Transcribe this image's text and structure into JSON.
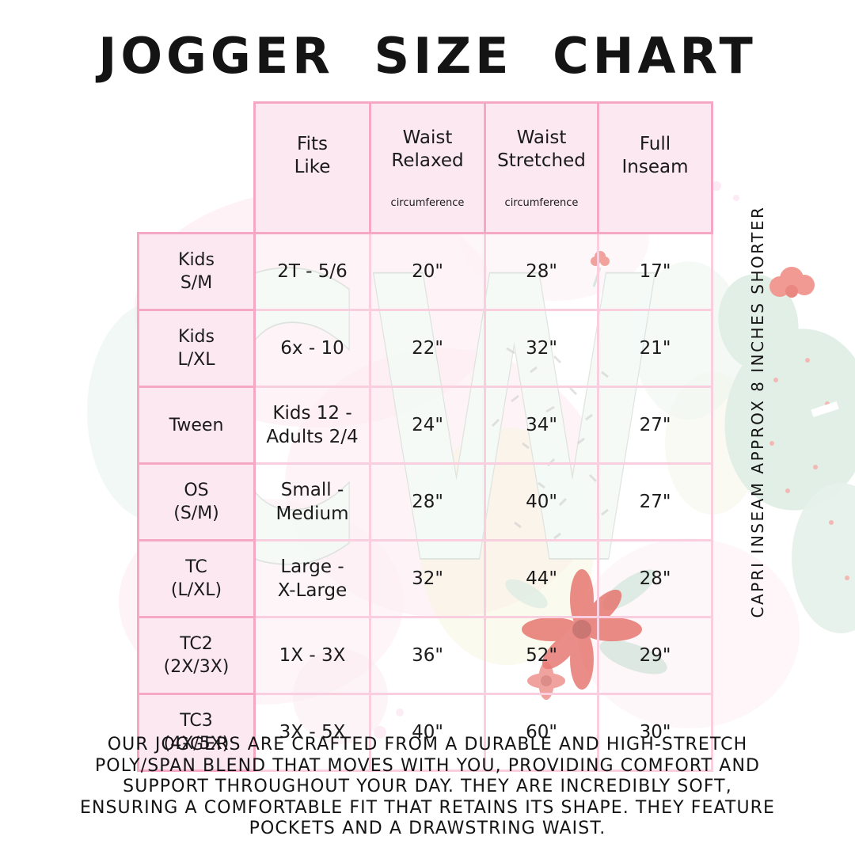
{
  "chart_data": {
    "type": "table",
    "title": "JOGGER SIZE CHART",
    "columns": [
      {
        "title": "Fits\nLike",
        "sub": ""
      },
      {
        "title": "Waist\nRelaxed",
        "sub": "circumference"
      },
      {
        "title": "Waist\nStretched",
        "sub": "circumference"
      },
      {
        "title": "Full\nInseam",
        "sub": ""
      }
    ],
    "rows": [
      {
        "label": "Kids\nS/M",
        "values": [
          "2T - 5/6",
          "20\"",
          "28\"",
          "17\""
        ]
      },
      {
        "label": "Kids\nL/XL",
        "values": [
          "6x - 10",
          "22\"",
          "32\"",
          "21\""
        ]
      },
      {
        "label": "Tween",
        "values": [
          "Kids 12 -\nAdults 2/4",
          "24\"",
          "34\"",
          "27\""
        ]
      },
      {
        "label": "OS\n(S/M)",
        "values": [
          "Small -\nMedium",
          "28\"",
          "40\"",
          "27\""
        ]
      },
      {
        "label": "TC\n(L/XL)",
        "values": [
          "Large -\nX-Large",
          "32\"",
          "44\"",
          "28\""
        ]
      },
      {
        "label": "TC2\n(2X/3X)",
        "values": [
          "1X - 3X",
          "36\"",
          "52\"",
          "29\""
        ]
      },
      {
        "label": "TC3\n(4X/5X)",
        "values": [
          "3X - 5X",
          "40\"",
          "60\"",
          "30\""
        ]
      }
    ]
  },
  "side_note": "CAPRI INSEAM APPROX 8 INCHES SHORTER",
  "description": "OUR JOGGERS ARE CRAFTED FROM A DURABLE AND HIGH-STRETCH\nPOLY/SPAN BLEND THAT MOVES WITH YOU, PROVIDING COMFORT AND\nSUPPORT THROUGHOUT YOUR DAY. THEY ARE INCREDIBLY SOFT,\nENSURING A COMFORTABLE FIT THAT RETAINS ITS SHAPE. THEY FEATURE\nPOCKETS AND A DRAWSTRING WAIST.",
  "watermark_text": "CW",
  "colors": {
    "cell_fill_pink": "#fce8f0",
    "border_strong_pink": "#f4a8c4",
    "border_light_pink": "#f9cfdf",
    "text": "#1b1b1b",
    "watermark_mint_fill": "#f3faf6",
    "watermark_outline": "#d7ded9",
    "flower_red": "#e2574f",
    "cactus_green": "#e2efe7",
    "blush_pink": "#fdedf3"
  }
}
